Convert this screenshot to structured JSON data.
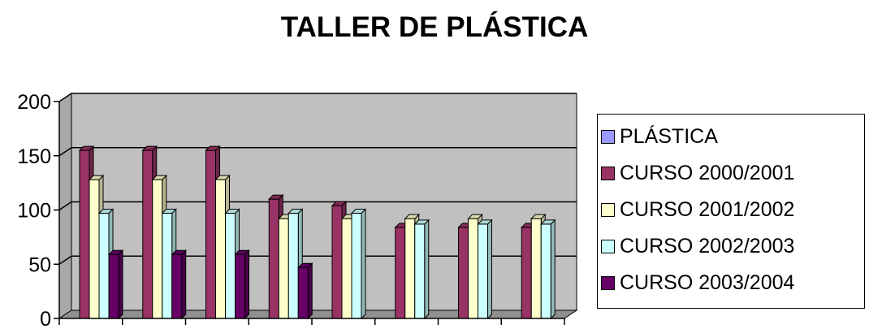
{
  "chart_data": {
    "type": "bar",
    "title": "TALLER DE PLÁSTICA",
    "xlabel": "",
    "ylabel": "",
    "ylim": [
      0,
      200
    ],
    "yticks": [
      0,
      50,
      100,
      150,
      200
    ],
    "grid": true,
    "style": "3d-clustered",
    "legend_position": "right",
    "categories": [
      "",
      "",
      "",
      "",
      "",
      "",
      "",
      ""
    ],
    "series": [
      {
        "name": "PLÁSTICA",
        "color": "#9999ff",
        "values": [
          0,
          0,
          0,
          0,
          0,
          0,
          0,
          0
        ]
      },
      {
        "name": "CURSO 2000/2001",
        "color": "#993366",
        "values": [
          155,
          155,
          155,
          110,
          104,
          84,
          84,
          84
        ]
      },
      {
        "name": "CURSO 2001/2002",
        "color": "#ffffcc",
        "values": [
          128,
          128,
          128,
          92,
          92,
          92,
          92,
          92
        ]
      },
      {
        "name": "CURSO 2002/2003",
        "color": "#ccffff",
        "values": [
          97,
          97,
          97,
          97,
          97,
          87,
          87,
          87
        ]
      },
      {
        "name": "CURSO 2003/2004",
        "color": "#660066",
        "values": [
          59,
          59,
          59,
          47,
          0,
          0,
          0,
          0
        ]
      }
    ]
  }
}
